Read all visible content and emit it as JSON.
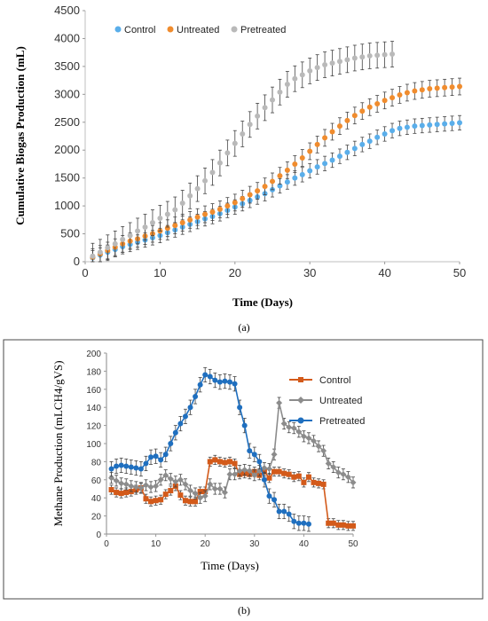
{
  "chart_data": [
    {
      "type": "scatter",
      "caption": "(a)",
      "xlabel": "Time (Days)",
      "ylabel": "Cumulative Biogas Production (mL)",
      "xlim": [
        0,
        50
      ],
      "ylim": [
        0,
        4500
      ],
      "xticks": [
        0,
        10,
        20,
        30,
        40,
        50
      ],
      "yticks": [
        0,
        500,
        1000,
        1500,
        2000,
        2500,
        3000,
        3500,
        4000,
        4500
      ],
      "grid": false,
      "legend_position": "top-left",
      "series": [
        {
          "name": "Control",
          "color": "#5aaeea",
          "x": [
            1,
            2,
            3,
            4,
            5,
            6,
            7,
            8,
            9,
            10,
            11,
            12,
            13,
            14,
            15,
            16,
            17,
            18,
            19,
            20,
            21,
            22,
            23,
            24,
            25,
            26,
            27,
            28,
            29,
            30,
            31,
            32,
            33,
            34,
            35,
            36,
            37,
            38,
            39,
            40,
            41,
            42,
            43,
            44,
            45,
            46,
            47,
            48,
            49,
            50
          ],
          "y": [
            70,
            120,
            170,
            220,
            270,
            310,
            350,
            390,
            430,
            470,
            520,
            570,
            620,
            670,
            720,
            770,
            810,
            860,
            920,
            980,
            1040,
            1100,
            1160,
            1220,
            1290,
            1360,
            1430,
            1500,
            1560,
            1630,
            1700,
            1760,
            1820,
            1890,
            1960,
            2030,
            2100,
            2160,
            2230,
            2290,
            2350,
            2390,
            2410,
            2430,
            2440,
            2450,
            2460,
            2470,
            2480,
            2490
          ],
          "error": 130
        },
        {
          "name": "Untreated",
          "color": "#f08c2e",
          "x": [
            1,
            2,
            3,
            4,
            5,
            6,
            7,
            8,
            9,
            10,
            11,
            12,
            13,
            14,
            15,
            16,
            17,
            18,
            19,
            20,
            21,
            22,
            23,
            24,
            25,
            26,
            27,
            28,
            29,
            30,
            31,
            32,
            33,
            34,
            35,
            36,
            37,
            38,
            39,
            40,
            41,
            42,
            43,
            44,
            45,
            46,
            47,
            48,
            49,
            50
          ],
          "y": [
            80,
            140,
            200,
            260,
            320,
            370,
            410,
            460,
            500,
            550,
            600,
            650,
            700,
            750,
            800,
            850,
            890,
            940,
            1000,
            1060,
            1130,
            1200,
            1270,
            1350,
            1440,
            1540,
            1640,
            1750,
            1860,
            1980,
            2100,
            2220,
            2330,
            2430,
            2530,
            2620,
            2700,
            2770,
            2830,
            2890,
            2940,
            2990,
            3030,
            3060,
            3080,
            3100,
            3110,
            3120,
            3130,
            3140
          ],
          "error": 150
        },
        {
          "name": "Pretreated",
          "color": "#b9b9b9",
          "x": [
            1,
            2,
            3,
            4,
            5,
            6,
            7,
            8,
            9,
            10,
            11,
            12,
            13,
            14,
            15,
            16,
            17,
            18,
            19,
            20,
            21,
            22,
            23,
            24,
            25,
            26,
            27,
            28,
            29,
            30,
            31,
            32,
            33,
            34,
            35,
            36,
            37,
            38,
            39,
            40,
            41
          ],
          "y": [
            100,
            170,
            250,
            320,
            400,
            470,
            550,
            620,
            700,
            780,
            850,
            930,
            1050,
            1180,
            1310,
            1450,
            1600,
            1770,
            1950,
            2120,
            2290,
            2460,
            2610,
            2760,
            2900,
            3040,
            3180,
            3280,
            3350,
            3420,
            3480,
            3530,
            3560,
            3590,
            3620,
            3650,
            3670,
            3690,
            3700,
            3710,
            3720
          ],
          "error": 230
        }
      ]
    },
    {
      "type": "line",
      "caption": "(b)",
      "xlabel": "Time (Days)",
      "ylabel": "Methane Production (mLCH4/gVS)",
      "xlim": [
        0,
        50
      ],
      "ylim": [
        0,
        200
      ],
      "xticks": [
        0,
        10,
        20,
        30,
        40,
        50
      ],
      "yticks": [
        0,
        20,
        40,
        60,
        80,
        100,
        120,
        140,
        160,
        180,
        200
      ],
      "grid": false,
      "legend_position": "right",
      "series": [
        {
          "name": "Control",
          "color": "#d35a1a",
          "marker": "square",
          "x": [
            1,
            2,
            3,
            4,
            5,
            6,
            7,
            8,
            9,
            10,
            11,
            12,
            13,
            14,
            15,
            16,
            17,
            18,
            19,
            20,
            21,
            22,
            23,
            24,
            25,
            26,
            27,
            28,
            29,
            30,
            31,
            32,
            33,
            34,
            35,
            36,
            37,
            38,
            39,
            40,
            41,
            42,
            43,
            44,
            45,
            46,
            47,
            48,
            49,
            50
          ],
          "y": [
            49,
            46,
            45,
            46,
            47,
            49,
            51,
            39,
            36,
            37,
            38,
            44,
            48,
            53,
            43,
            37,
            36,
            36,
            47,
            47,
            80,
            82,
            80,
            79,
            80,
            78,
            66,
            67,
            66,
            69,
            65,
            69,
            62,
            69,
            69,
            67,
            66,
            63,
            64,
            57,
            63,
            57,
            56,
            55,
            12,
            12,
            10,
            10,
            9,
            9
          ],
          "error": 5
        },
        {
          "name": "Untreated",
          "color": "#8c8c8c",
          "marker": "diamond",
          "x": [
            1,
            2,
            3,
            4,
            5,
            6,
            7,
            8,
            9,
            10,
            11,
            12,
            13,
            14,
            15,
            16,
            17,
            18,
            19,
            20,
            21,
            22,
            23,
            24,
            25,
            26,
            27,
            28,
            29,
            30,
            31,
            32,
            33,
            34,
            35,
            36,
            37,
            38,
            39,
            40,
            41,
            42,
            43,
            44,
            45,
            46,
            47,
            48,
            49,
            50
          ],
          "y": [
            62,
            59,
            56,
            55,
            53,
            52,
            51,
            54,
            52,
            53,
            60,
            65,
            61,
            58,
            60,
            55,
            48,
            45,
            40,
            42,
            55,
            50,
            50,
            46,
            66,
            66,
            70,
            71,
            70,
            65,
            70,
            73,
            72,
            88,
            145,
            122,
            118,
            117,
            113,
            108,
            106,
            103,
            97,
            92,
            78,
            74,
            68,
            66,
            63,
            57
          ],
          "error": 6
        },
        {
          "name": "Pretreated",
          "color": "#1f6fbf",
          "marker": "circle",
          "x": [
            1,
            2,
            3,
            4,
            5,
            6,
            7,
            8,
            9,
            10,
            11,
            12,
            13,
            14,
            15,
            16,
            17,
            18,
            19,
            20,
            21,
            22,
            23,
            24,
            25,
            26,
            27,
            28,
            29,
            30,
            31,
            32,
            33,
            34,
            35,
            36,
            37,
            38,
            39,
            40,
            41
          ],
          "y": [
            72,
            75,
            76,
            75,
            74,
            73,
            72,
            78,
            85,
            86,
            82,
            88,
            100,
            112,
            122,
            130,
            140,
            152,
            165,
            176,
            174,
            170,
            168,
            169,
            168,
            166,
            140,
            120,
            92,
            88,
            80,
            60,
            42,
            38,
            25,
            25,
            22,
            14,
            12,
            12,
            11
          ],
          "error": 8
        }
      ]
    }
  ]
}
